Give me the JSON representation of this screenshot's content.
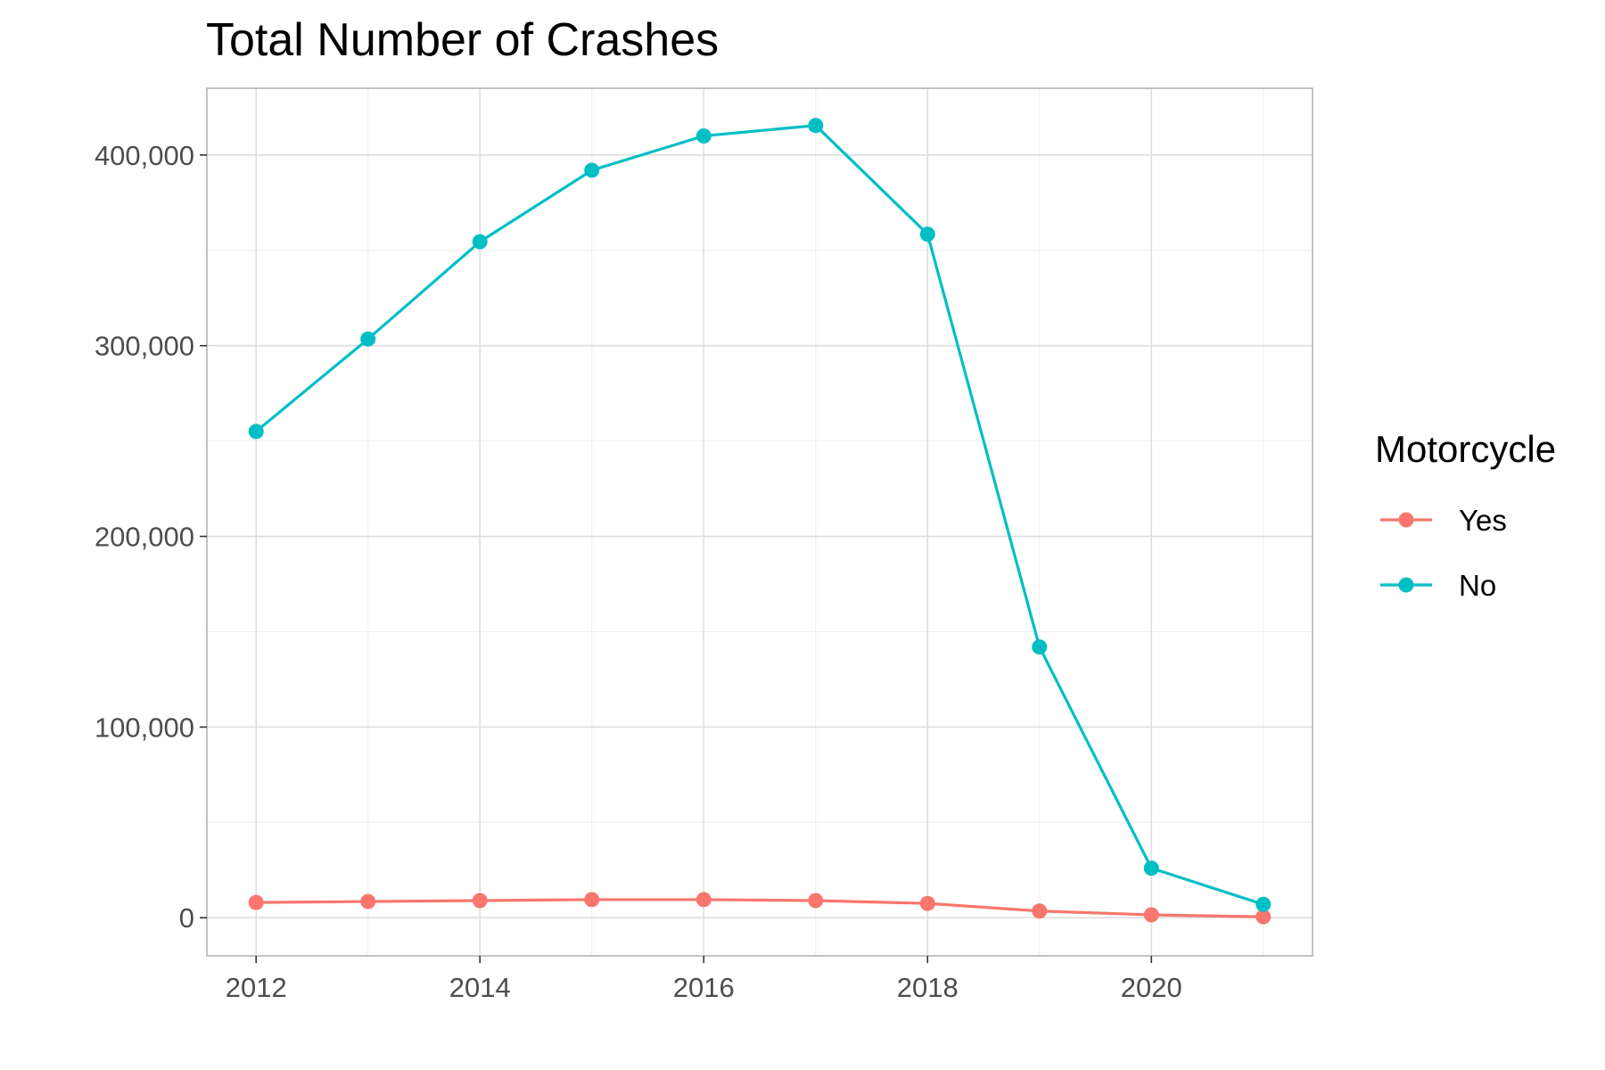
{
  "chart_data": {
    "type": "line",
    "title": "Total Number of Crashes",
    "xlabel": "",
    "ylabel": "",
    "x": [
      2012,
      2013,
      2014,
      2015,
      2016,
      2017,
      2018,
      2019,
      2020,
      2021
    ],
    "x_ticks": [
      "2012",
      "2014",
      "2016",
      "2018",
      "2020"
    ],
    "y_ticks": [
      "0",
      "100,000",
      "200,000",
      "300,000",
      "400,000"
    ],
    "ylim": [
      -20000,
      435000
    ],
    "xlim": [
      2011.56,
      2021.44
    ],
    "grid": true,
    "legend": {
      "title": "Motorcycle",
      "position": "right"
    },
    "series": [
      {
        "name": "Yes",
        "color": "#F8766D",
        "values": [
          8000,
          8500,
          9000,
          9500,
          9500,
          9000,
          7500,
          3500,
          1500,
          500
        ]
      },
      {
        "name": "No",
        "color": "#00BFC4",
        "values": [
          255000,
          303500,
          354500,
          392000,
          410000,
          415500,
          358500,
          142000,
          26000,
          7000
        ]
      }
    ]
  }
}
